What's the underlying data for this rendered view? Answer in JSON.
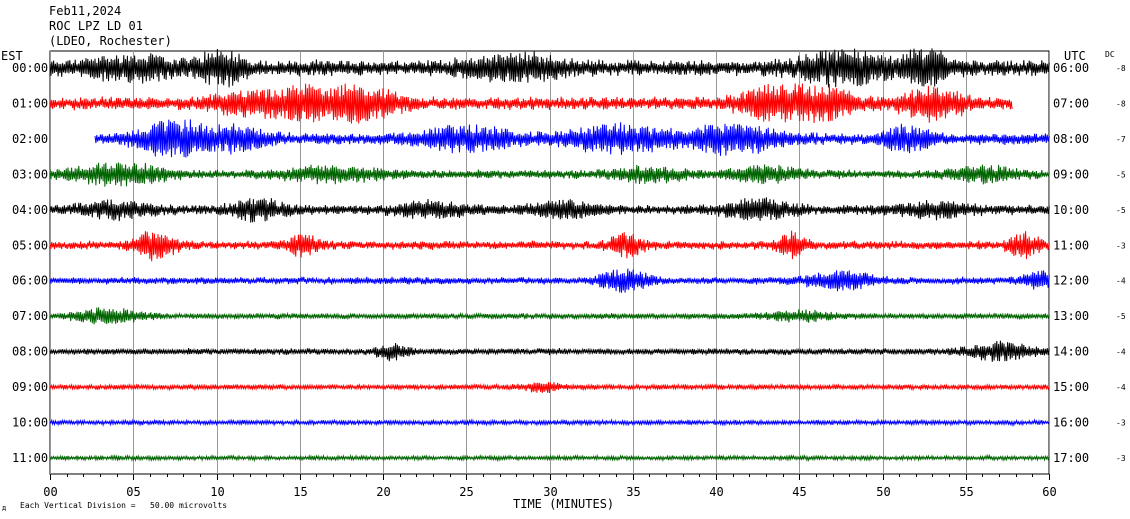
{
  "header": {
    "date": "Feb11,2024",
    "station": "ROC LPZ LD 01",
    "network": "(LDEO, Rochester)"
  },
  "chart_data": {
    "type": "line",
    "title": "ROC LPZ LD 01",
    "xlabel": "TIME (MINUTES)",
    "ylabel_left": "EST",
    "ylabel_right": "UTC",
    "dc_label": "DC",
    "footer_note": "Each Vertical Division =   50.00 microvolts",
    "footer_symbol": "д",
    "xlim": [
      0,
      60
    ],
    "x_ticks": [
      0,
      5,
      10,
      15,
      20,
      25,
      30,
      35,
      40,
      45,
      50,
      55,
      60
    ],
    "x_tick_labels": [
      "00",
      "05",
      "10",
      "15",
      "20",
      "25",
      "30",
      "35",
      "40",
      "45",
      "50",
      "55",
      "60"
    ],
    "grid": true,
    "trace_colors": [
      "#000000",
      "#ff0000",
      "#0000ff",
      "#006400"
    ],
    "rows": [
      {
        "est": "00:00",
        "utc": "06:00",
        "dc": "-8",
        "color": "#000000",
        "start": 0,
        "end": 60,
        "amp": 0.55,
        "bursts": [
          [
            10.3,
            1.2,
            1.0
          ],
          [
            28,
            3,
            0.6
          ],
          [
            47.5,
            2.5,
            0.9
          ],
          [
            52.6,
            1.5,
            1.0
          ],
          [
            5,
            3,
            0.5
          ]
        ]
      },
      {
        "est": "01:00",
        "utc": "07:00",
        "dc": "-8",
        "color": "#ff0000",
        "start": 0,
        "end": 57.8,
        "amp": 0.45,
        "bursts": [
          [
            16,
            2,
            1.1
          ],
          [
            19,
            2,
            0.8
          ],
          [
            43.5,
            2,
            1.0
          ],
          [
            46,
            2,
            1.1
          ],
          [
            53,
            2,
            0.8
          ],
          [
            12,
            2,
            0.6
          ]
        ]
      },
      {
        "est": "02:00",
        "utc": "08:00",
        "dc": "-7",
        "color": "#0000ff",
        "start": 2.7,
        "end": 60,
        "amp": 0.4,
        "bursts": [
          [
            7.3,
            2,
            1.0
          ],
          [
            11,
            2,
            0.6
          ],
          [
            25,
            3,
            0.6
          ],
          [
            34,
            3,
            0.7
          ],
          [
            41,
            3,
            0.7
          ],
          [
            51.5,
            1.5,
            0.6
          ]
        ]
      },
      {
        "est": "03:00",
        "utc": "09:00",
        "dc": "-5",
        "color": "#006400",
        "start": 0,
        "end": 60,
        "amp": 0.3,
        "bursts": [
          [
            4,
            3,
            0.6
          ],
          [
            17,
            3,
            0.4
          ],
          [
            36,
            2,
            0.4
          ],
          [
            43,
            2,
            0.4
          ],
          [
            56,
            2,
            0.4
          ]
        ]
      },
      {
        "est": "04:00",
        "utc": "10:00",
        "dc": "-5",
        "color": "#000000",
        "start": 0,
        "end": 60,
        "amp": 0.35,
        "bursts": [
          [
            4,
            2,
            0.4
          ],
          [
            12.5,
            1.5,
            0.6
          ],
          [
            23,
            2,
            0.4
          ],
          [
            31,
            2,
            0.4
          ],
          [
            42.5,
            2,
            0.5
          ],
          [
            53,
            2,
            0.4
          ]
        ]
      },
      {
        "est": "05:00",
        "utc": "11:00",
        "dc": "-3",
        "color": "#ff0000",
        "start": 0,
        "end": 60,
        "amp": 0.3,
        "bursts": [
          [
            6.3,
            1.2,
            0.8
          ],
          [
            15.2,
            1,
            0.6
          ],
          [
            34.6,
            1,
            0.6
          ],
          [
            44.6,
            0.8,
            0.7
          ],
          [
            58.5,
            1,
            0.6
          ]
        ]
      },
      {
        "est": "06:00",
        "utc": "12:00",
        "dc": "-4",
        "color": "#0000ff",
        "start": 0,
        "end": 60,
        "amp": 0.25,
        "bursts": [
          [
            34.5,
            1.5,
            0.6
          ],
          [
            47.5,
            2,
            0.5
          ],
          [
            59.5,
            1,
            0.5
          ]
        ]
      },
      {
        "est": "07:00",
        "utc": "13:00",
        "dc": "-5",
        "color": "#006400",
        "start": 0,
        "end": 60,
        "amp": 0.2,
        "bursts": [
          [
            3.5,
            2,
            0.4
          ],
          [
            45,
            2,
            0.3
          ]
        ]
      },
      {
        "est": "08:00",
        "utc": "14:00",
        "dc": "-4",
        "color": "#000000",
        "start": 0,
        "end": 60,
        "amp": 0.22,
        "bursts": [
          [
            20.5,
            1,
            0.4
          ],
          [
            57,
            2,
            0.5
          ]
        ]
      },
      {
        "est": "09:00",
        "utc": "15:00",
        "dc": "-4",
        "color": "#ff0000",
        "start": 0,
        "end": 60,
        "amp": 0.18,
        "bursts": [
          [
            29.5,
            1,
            0.3
          ]
        ]
      },
      {
        "est": "10:00",
        "utc": "16:00",
        "dc": "-3",
        "color": "#0000ff",
        "start": 0,
        "end": 60,
        "amp": 0.16,
        "bursts": []
      },
      {
        "est": "11:00",
        "utc": "17:00",
        "dc": "-3",
        "color": "#006400",
        "start": 0,
        "end": 60,
        "amp": 0.15,
        "bursts": []
      }
    ]
  }
}
